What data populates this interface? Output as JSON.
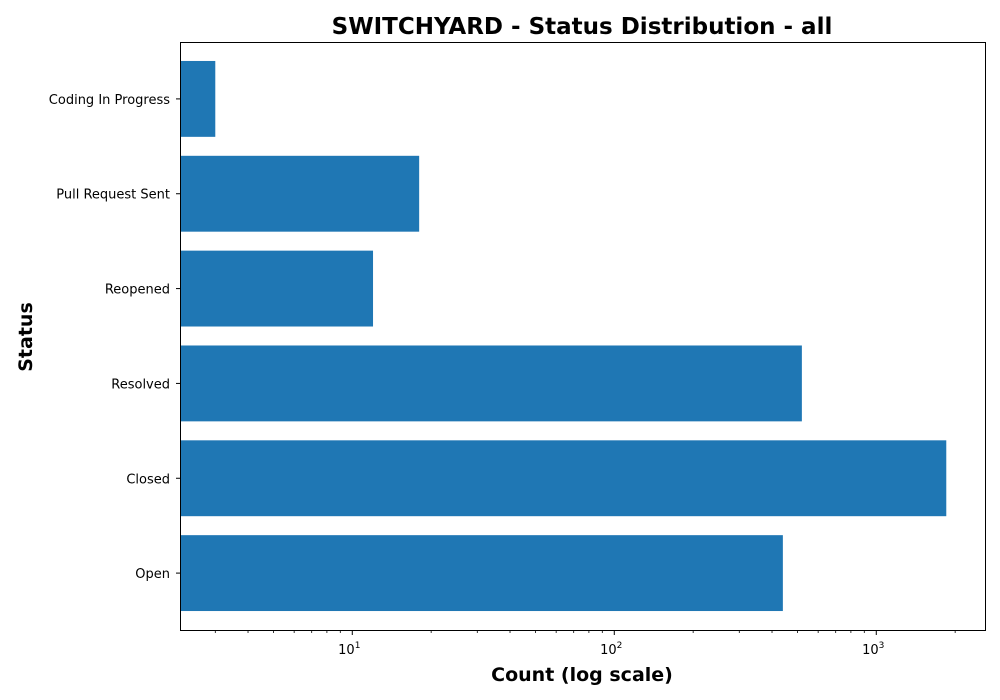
{
  "chart_data": {
    "type": "bar",
    "orientation": "horizontal",
    "title": "SWITCHYARD - Status Distribution - all",
    "xlabel": "Count (log scale)",
    "ylabel": "Status",
    "x_scale": "log",
    "x_ticks": [
      {
        "base": "10",
        "exp": "1",
        "value": 10
      },
      {
        "base": "10",
        "exp": "2",
        "value": 100
      },
      {
        "base": "10",
        "exp": "3",
        "value": 1000
      }
    ],
    "xlim": [
      2.2,
      2600
    ],
    "categories": [
      "Open",
      "Closed",
      "Resolved",
      "Reopened",
      "Pull Request Sent",
      "Coding In Progress"
    ],
    "values": [
      440,
      1850,
      520,
      12,
      18,
      3
    ],
    "bar_color": "#1f77b4",
    "grid": false,
    "legend": "none"
  }
}
